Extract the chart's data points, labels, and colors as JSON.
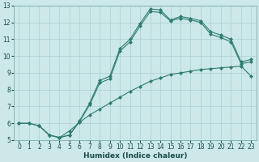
{
  "xlabel": "Humidex (Indice chaleur)",
  "bg_color": "#cce8e8",
  "grid_color": "#b0d4d4",
  "line_color": "#2e7d6e",
  "xlim": [
    -0.5,
    23.5
  ],
  "ylim": [
    5,
    13
  ],
  "xticks": [
    0,
    1,
    2,
    3,
    4,
    5,
    6,
    7,
    8,
    9,
    10,
    11,
    12,
    13,
    14,
    15,
    16,
    17,
    18,
    19,
    20,
    21,
    22,
    23
  ],
  "yticks": [
    5,
    6,
    7,
    8,
    9,
    10,
    11,
    12,
    13
  ],
  "line1_x": [
    0,
    1,
    2,
    3,
    4,
    5,
    6,
    7,
    8,
    9,
    10,
    11,
    12,
    13,
    14,
    15,
    16,
    17,
    18,
    19,
    20,
    21,
    22,
    23
  ],
  "line1_y": [
    6.0,
    6.0,
    5.85,
    5.3,
    5.15,
    5.3,
    6.15,
    7.2,
    8.55,
    8.8,
    10.45,
    11.0,
    11.95,
    12.8,
    12.75,
    12.15,
    12.35,
    12.25,
    12.1,
    11.45,
    11.25,
    11.0,
    9.65,
    9.8
  ],
  "line2_x": [
    2,
    3,
    4,
    5,
    6,
    7,
    8,
    9,
    10,
    11,
    12,
    13,
    14,
    15,
    16,
    17,
    18,
    19,
    20,
    21,
    22,
    23
  ],
  "line2_y": [
    5.85,
    5.3,
    5.15,
    5.3,
    6.1,
    7.1,
    8.4,
    8.65,
    10.3,
    10.85,
    11.8,
    12.65,
    12.6,
    12.1,
    12.25,
    12.15,
    12.0,
    11.3,
    11.1,
    10.85,
    9.55,
    9.65
  ],
  "line3_x": [
    0,
    1,
    2,
    3,
    4,
    5,
    6,
    7,
    8,
    9,
    10,
    11,
    12,
    13,
    14,
    15,
    16,
    17,
    18,
    19,
    20,
    21,
    22,
    23
  ],
  "line3_y": [
    6.0,
    6.0,
    5.85,
    5.3,
    5.15,
    5.55,
    6.05,
    6.5,
    6.85,
    7.2,
    7.55,
    7.9,
    8.2,
    8.5,
    8.7,
    8.9,
    9.0,
    9.1,
    9.2,
    9.25,
    9.3,
    9.35,
    9.4,
    8.8
  ]
}
